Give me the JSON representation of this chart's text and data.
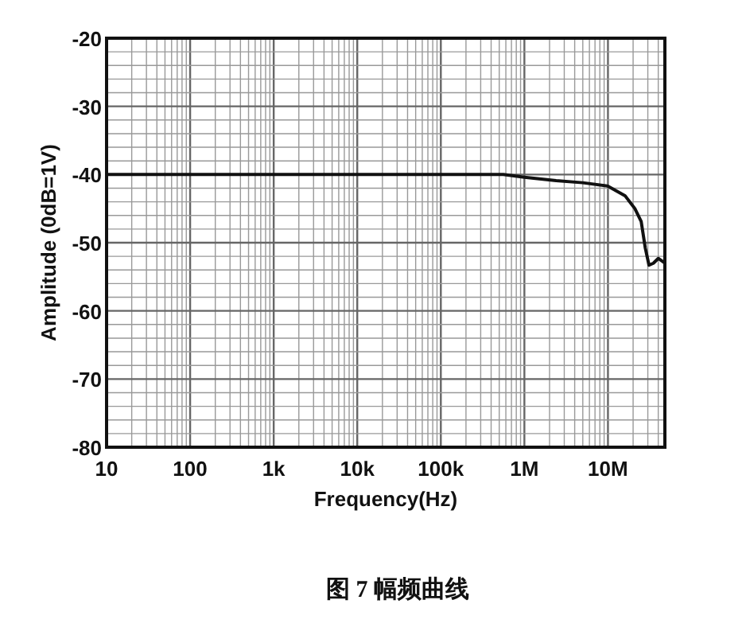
{
  "chart_data": {
    "type": "line",
    "title": "图 7 幅频曲线",
    "xlabel": "Frequency(Hz)",
    "ylabel": "Amplitude (0dB=1V)",
    "log": "x",
    "xlim": [
      10,
      48000000
    ],
    "ylim": [
      -80,
      -20
    ],
    "xticks": [
      {
        "value": 10,
        "label": "10"
      },
      {
        "value": 20,
        "label": null
      },
      {
        "value": 30,
        "label": null
      },
      {
        "value": 40,
        "label": null
      },
      {
        "value": 50,
        "label": null
      },
      {
        "value": 60,
        "label": null
      },
      {
        "value": 70,
        "label": null
      },
      {
        "value": 80,
        "label": null
      },
      {
        "value": 90,
        "label": null
      },
      {
        "value": 100,
        "label": "100"
      },
      {
        "value": 200,
        "label": null
      },
      {
        "value": 300,
        "label": null
      },
      {
        "value": 400,
        "label": null
      },
      {
        "value": 500,
        "label": null
      },
      {
        "value": 600,
        "label": null
      },
      {
        "value": 700,
        "label": null
      },
      {
        "value": 800,
        "label": null
      },
      {
        "value": 900,
        "label": null
      },
      {
        "value": 1000,
        "label": "1k"
      },
      {
        "value": 2000,
        "label": null
      },
      {
        "value": 3000,
        "label": null
      },
      {
        "value": 4000,
        "label": null
      },
      {
        "value": 5000,
        "label": null
      },
      {
        "value": 6000,
        "label": null
      },
      {
        "value": 7000,
        "label": null
      },
      {
        "value": 8000,
        "label": null
      },
      {
        "value": 9000,
        "label": null
      },
      {
        "value": 10000,
        "label": "10k"
      },
      {
        "value": 20000,
        "label": null
      },
      {
        "value": 30000,
        "label": null
      },
      {
        "value": 40000,
        "label": null
      },
      {
        "value": 50000,
        "label": null
      },
      {
        "value": 60000,
        "label": null
      },
      {
        "value": 70000,
        "label": null
      },
      {
        "value": 80000,
        "label": null
      },
      {
        "value": 90000,
        "label": null
      },
      {
        "value": 100000,
        "label": "100k"
      },
      {
        "value": 200000,
        "label": null
      },
      {
        "value": 300000,
        "label": null
      },
      {
        "value": 400000,
        "label": null
      },
      {
        "value": 500000,
        "label": null
      },
      {
        "value": 600000,
        "label": null
      },
      {
        "value": 700000,
        "label": null
      },
      {
        "value": 800000,
        "label": null
      },
      {
        "value": 900000,
        "label": null
      },
      {
        "value": 1000000,
        "label": "1M"
      },
      {
        "value": 2000000,
        "label": null
      },
      {
        "value": 3000000,
        "label": null
      },
      {
        "value": 4000000,
        "label": null
      },
      {
        "value": 5000000,
        "label": null
      },
      {
        "value": 6000000,
        "label": null
      },
      {
        "value": 7000000,
        "label": null
      },
      {
        "value": 8000000,
        "label": null
      },
      {
        "value": 9000000,
        "label": null
      },
      {
        "value": 10000000,
        "label": "10M"
      },
      {
        "value": 20000000,
        "label": null
      },
      {
        "value": 30000000,
        "label": null
      },
      {
        "value": 40000000,
        "label": null
      }
    ],
    "yticks": [
      -80,
      {
        "value": -78,
        "label": null
      },
      {
        "value": -76,
        "label": null
      },
      {
        "value": -74,
        "label": null
      },
      {
        "value": -72,
        "label": null
      },
      -70,
      {
        "value": -68,
        "label": null
      },
      {
        "value": -66,
        "label": null
      },
      {
        "value": -64,
        "label": null
      },
      {
        "value": -62,
        "label": null
      },
      -60,
      {
        "value": -58,
        "label": null
      },
      {
        "value": -56,
        "label": null
      },
      {
        "value": -54,
        "label": null
      },
      {
        "value": -52,
        "label": null
      },
      -50,
      {
        "value": -48,
        "label": null
      },
      {
        "value": -46,
        "label": null
      },
      {
        "value": -44,
        "label": null
      },
      {
        "value": -42,
        "label": null
      },
      -40,
      {
        "value": -38,
        "label": null
      },
      {
        "value": -36,
        "label": null
      },
      {
        "value": -34,
        "label": null
      },
      {
        "value": -32,
        "label": null
      },
      -30,
      {
        "value": -28,
        "label": null
      },
      {
        "value": -26,
        "label": null
      },
      {
        "value": -24,
        "label": null
      },
      {
        "value": -22,
        "label": null
      },
      -20
    ],
    "grid": true,
    "marker": "none",
    "line_style": "solid",
    "series": [
      {
        "color": "#111111",
        "x": [
          10,
          560000,
          1000000,
          2400000,
          5000000,
          10000000,
          16000000,
          21000000,
          25000000,
          28000000,
          31000000,
          35000000,
          40000000,
          48000000
        ],
        "values": [
          -40,
          -40,
          -40.4,
          -40.9,
          -41.2,
          -41.7,
          -43.1,
          -45,
          -46.9,
          -50.8,
          -53.3,
          -53,
          -52.3,
          -53
        ]
      }
    ]
  }
}
